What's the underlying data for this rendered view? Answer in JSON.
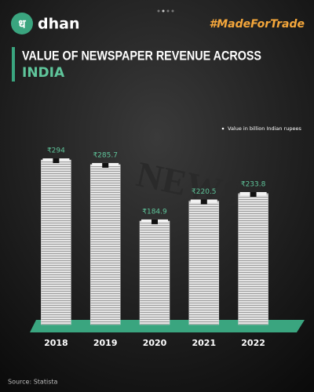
{
  "brand": "dhan",
  "logo_glyph": "ध",
  "hashtag": "#MadeForTrade",
  "chart_data": {
    "type": "bar",
    "title": [
      "VALUE OF NEWSPAPER REVENUE ACROSS",
      "INDIA"
    ],
    "note": "Value in billion Indian rupees",
    "watermark": "NEWS",
    "categories": [
      "2018",
      "2019",
      "2020",
      "2021",
      "2022"
    ],
    "values": [
      294,
      285.7,
      184.9,
      220.5,
      233.8
    ],
    "value_labels": [
      "₹294",
      "₹285.7",
      "₹184.9",
      "₹220.5",
      "₹233.8"
    ],
    "color": "#dcdcdc",
    "label_color": "#5fc59b"
  },
  "source": "Source: Statista"
}
